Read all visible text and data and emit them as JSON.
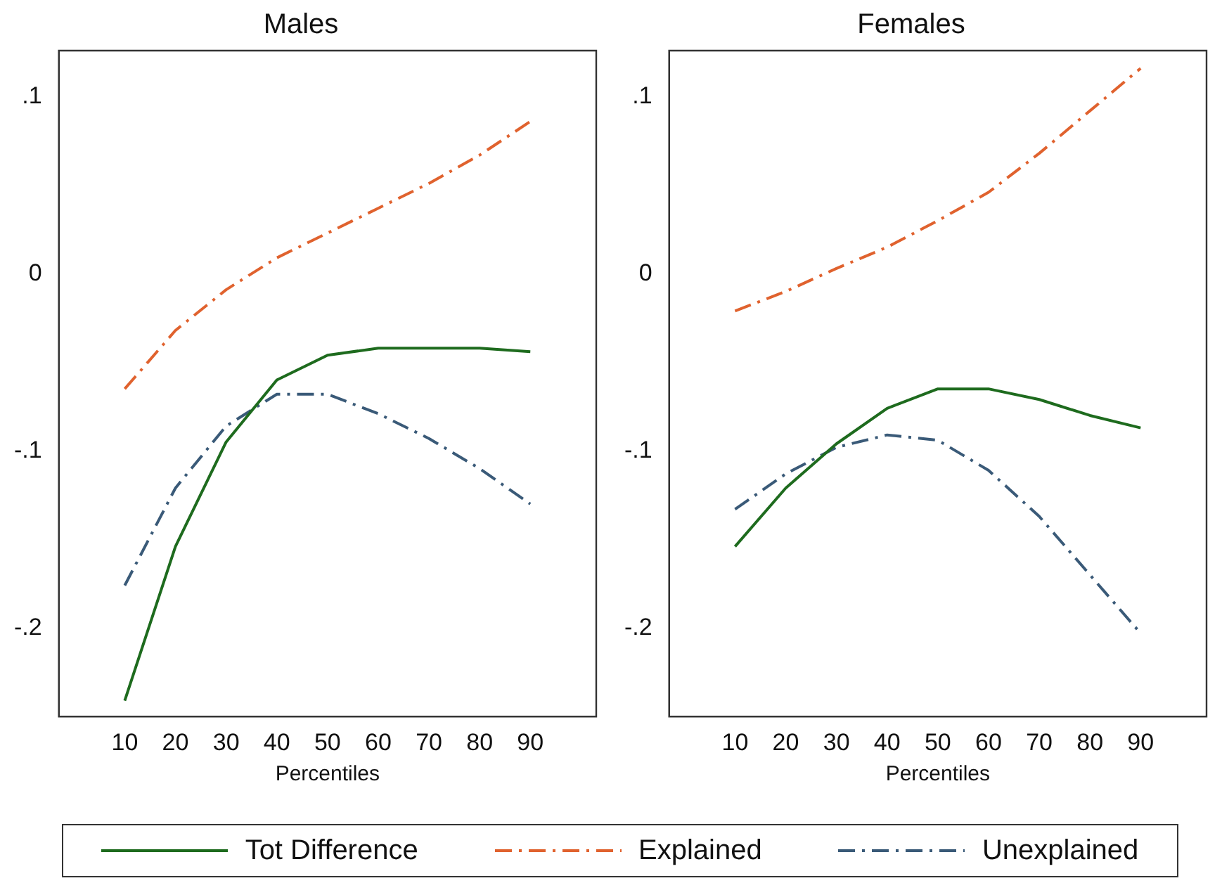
{
  "chart_data": [
    {
      "type": "line",
      "title": "Males",
      "xlabel": "Percentiles",
      "x": [
        10,
        20,
        30,
        40,
        50,
        60,
        70,
        80,
        90
      ],
      "xlim": [
        -3,
        103
      ],
      "xticks": [
        10,
        20,
        30,
        40,
        50,
        60,
        70,
        80,
        90
      ],
      "ylim": [
        -0.25,
        0.126
      ],
      "yticks": [
        {
          "value": -0.2,
          "label": "-.2"
        },
        {
          "value": -0.1,
          "label": "-.1"
        },
        {
          "value": 0,
          "label": "0"
        },
        {
          "value": 0.1,
          "label": ".1"
        }
      ],
      "grid": false,
      "legend": "bottom",
      "marker": "none",
      "series": [
        {
          "name": "Tot Difference",
          "color": "#1e6b1e",
          "line_style": "solid",
          "values": [
            -0.241,
            -0.154,
            -0.095,
            -0.06,
            -0.046,
            -0.042,
            -0.042,
            -0.042,
            -0.044
          ]
        },
        {
          "name": "Explained",
          "color": "#e0622e",
          "line_style": "dashed",
          "values": [
            -0.065,
            -0.032,
            -0.009,
            0.009,
            0.023,
            0.037,
            0.051,
            0.067,
            0.086
          ]
        },
        {
          "name": "Unexplained",
          "color": "#3a5a78",
          "line_style": "dashed",
          "values": [
            -0.176,
            -0.121,
            -0.086,
            -0.068,
            -0.068,
            -0.079,
            -0.093,
            -0.11,
            -0.13
          ]
        }
      ]
    },
    {
      "type": "line",
      "title": "Females",
      "xlabel": "Percentiles",
      "x": [
        10,
        20,
        30,
        40,
        50,
        60,
        70,
        80,
        90
      ],
      "xlim": [
        -3,
        103
      ],
      "xticks": [
        10,
        20,
        30,
        40,
        50,
        60,
        70,
        80,
        90
      ],
      "ylim": [
        -0.25,
        0.126
      ],
      "yticks": [
        {
          "value": -0.2,
          "label": "-.2"
        },
        {
          "value": -0.1,
          "label": "-.1"
        },
        {
          "value": 0,
          "label": "0"
        },
        {
          "value": 0.1,
          "label": ".1"
        }
      ],
      "grid": false,
      "legend": "bottom",
      "marker": "none",
      "series": [
        {
          "name": "Tot Difference",
          "color": "#1e6b1e",
          "line_style": "solid",
          "values": [
            -0.154,
            -0.121,
            -0.096,
            -0.076,
            -0.065,
            -0.065,
            -0.071,
            -0.08,
            -0.087
          ]
        },
        {
          "name": "Explained",
          "color": "#e0622e",
          "line_style": "dashed",
          "values": [
            -0.021,
            -0.01,
            0.003,
            0.015,
            0.03,
            0.046,
            0.068,
            0.092,
            0.116
          ]
        },
        {
          "name": "Unexplained",
          "color": "#3a5a78",
          "line_style": "dashed",
          "values": [
            -0.133,
            -0.113,
            -0.098,
            -0.091,
            -0.094,
            -0.111,
            -0.137,
            -0.17,
            -0.203
          ]
        }
      ]
    }
  ]
}
